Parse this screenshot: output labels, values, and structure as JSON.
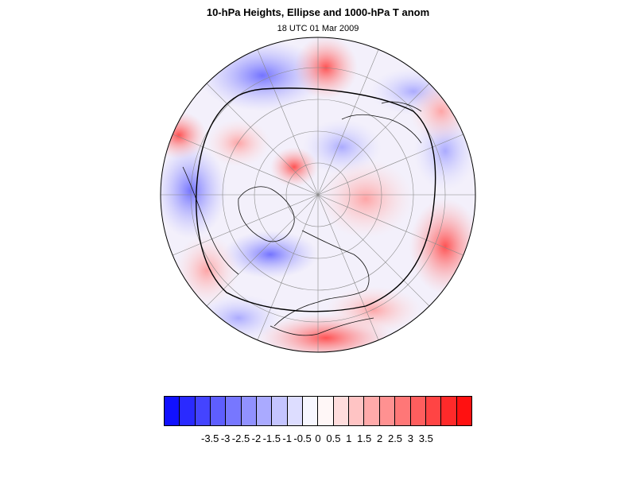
{
  "title": "10-hPa Heights, Ellipse and 1000-hPa T anom",
  "subtitle": "18 UTC 01 Mar 2009",
  "colorbar": {
    "colors": [
      "#1111ff",
      "#2a2aff",
      "#4444ff",
      "#5e5eff",
      "#7777ff",
      "#9191ff",
      "#aaaaff",
      "#c4c4ff",
      "#ddddff",
      "#f7f7ff",
      "#fff7f7",
      "#ffdddd",
      "#ffc4c4",
      "#ffaaaa",
      "#ff9191",
      "#ff7777",
      "#ff5e5e",
      "#ff4444",
      "#ff2a2a",
      "#ff1111"
    ],
    "labels": [
      "-3.5",
      "-3",
      "-2.5",
      "-2",
      "-1.5",
      "-1",
      "-0.5",
      "0",
      "0.5",
      "1",
      "1.5",
      "2",
      "2.5",
      "3",
      "3.5"
    ]
  },
  "map": {
    "projection": "north polar stereographic",
    "field": "1000-hPa temperature anomaly",
    "contour": "10-hPa height ellipse (black line)"
  }
}
